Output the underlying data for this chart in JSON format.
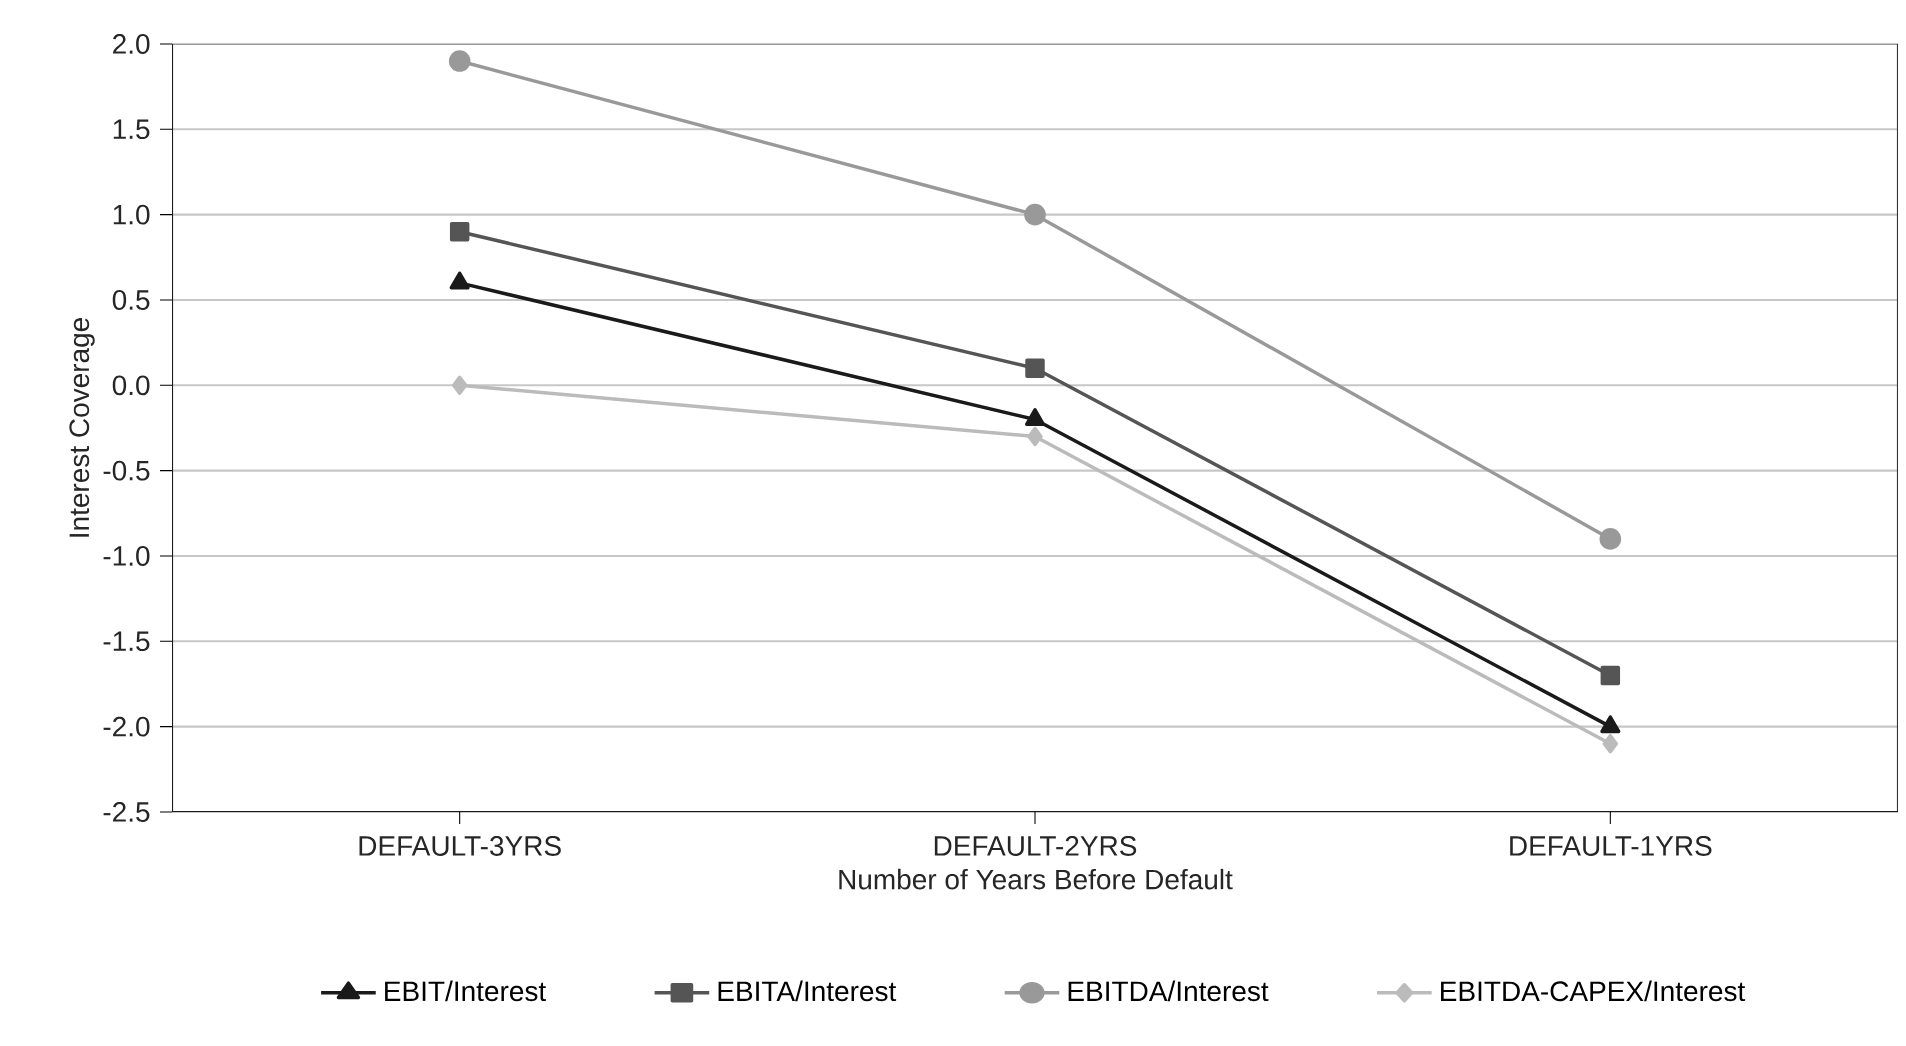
{
  "chart_data": {
    "type": "line",
    "xlabel": "Number of Years Before Default",
    "ylabel": "Interest Coverage",
    "categories": [
      "DEFAULT-3YRS",
      "DEFAULT-2YRS",
      "DEFAULT-1YRS"
    ],
    "series": [
      {
        "name": "EBIT/Interest",
        "color": "#1a1a1a",
        "marker": "triangle",
        "values": [
          0.6,
          -0.2,
          -2.0
        ]
      },
      {
        "name": "EBITA/Interest",
        "color": "#555555",
        "marker": "square",
        "values": [
          0.9,
          0.1,
          -1.7
        ]
      },
      {
        "name": "EBITDA/Interest",
        "color": "#999999",
        "marker": "circle",
        "values": [
          1.9,
          1.0,
          -0.9
        ]
      },
      {
        "name": "EBITDA-CAPEX/Interest",
        "color": "#bbbbbb",
        "marker": "diamond",
        "values": [
          0.0,
          -0.3,
          -2.1
        ]
      }
    ],
    "ylim": [
      -2.5,
      2
    ],
    "yticks": [
      -2.5,
      {
        "value": -2,
        "label": "-2.0"
      },
      -1.5,
      {
        "value": -1,
        "label": "-1.0"
      },
      -0.5,
      {
        "value": 0,
        "label": "0.0"
      },
      0.5,
      {
        "value": 1,
        "label": "1.0"
      },
      1.5,
      {
        "value": 2,
        "label": "2.0"
      }
    ],
    "grid": "y",
    "legend": "bottom",
    "line_style": "solid"
  }
}
